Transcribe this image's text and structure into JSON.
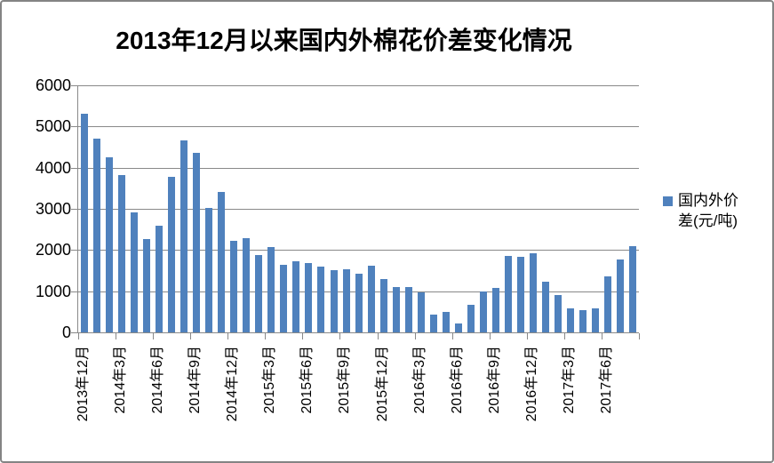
{
  "chart_data": {
    "type": "bar",
    "title": "2013年12月以来国内外棉花价差变化情况",
    "series": [
      {
        "name": "国内外价差(元/吨)",
        "values": [
          5310,
          4700,
          4260,
          3820,
          2910,
          2270,
          2590,
          3780,
          4670,
          4360,
          3030,
          3410,
          2230,
          2280,
          1870,
          2070,
          1650,
          1720,
          1680,
          1590,
          1520,
          1540,
          1430,
          1610,
          1300,
          1090,
          1110,
          970,
          430,
          490,
          220,
          670,
          1000,
          1070,
          1850,
          1840,
          1930,
          1230,
          910,
          590,
          530,
          580,
          1360,
          1760,
          2090
        ]
      }
    ],
    "categories": [
      "2013年12月",
      "2014年1月",
      "2014年2月",
      "2014年3月",
      "2014年4月",
      "2014年5月",
      "2014年6月",
      "2014年7月",
      "2014年8月",
      "2014年9月",
      "2014年10月",
      "2014年11月",
      "2014年12月",
      "2015年1月",
      "2015年2月",
      "2015年3月",
      "2015年4月",
      "2015年5月",
      "2015年6月",
      "2015年7月",
      "2015年8月",
      "2015年9月",
      "2015年10月",
      "2015年11月",
      "2015年12月",
      "2016年1月",
      "2016年2月",
      "2016年3月",
      "2016年4月",
      "2016年5月",
      "2016年6月",
      "2016年7月",
      "2016年8月",
      "2016年9月",
      "2016年10月",
      "2016年11月",
      "2016年12月",
      "2017年1月",
      "2017年2月",
      "2017年3月",
      "2017年4月",
      "2017年5月",
      "2017年6月",
      "2017年7月",
      "2017年8月"
    ],
    "x_tick_labels": [
      "2013年12月",
      "2014年3月",
      "2014年6月",
      "2014年9月",
      "2014年12月",
      "2015年3月",
      "2015年6月",
      "2015年9月",
      "2015年12月",
      "2016年3月",
      "2016年6月",
      "2016年9月",
      "2016年12月",
      "2017年3月",
      "2017年6月"
    ],
    "x_label_interval": 3,
    "y_ticks": [
      0,
      1000,
      2000,
      3000,
      4000,
      5000,
      6000
    ],
    "ylim": [
      0,
      6000
    ],
    "xlabel": "",
    "ylabel": "",
    "grid": true,
    "legend_position": "right",
    "bar_color": "#4F81BD",
    "gridline_color": "#898989",
    "border_color": "#848484",
    "text_color": "#000000"
  }
}
